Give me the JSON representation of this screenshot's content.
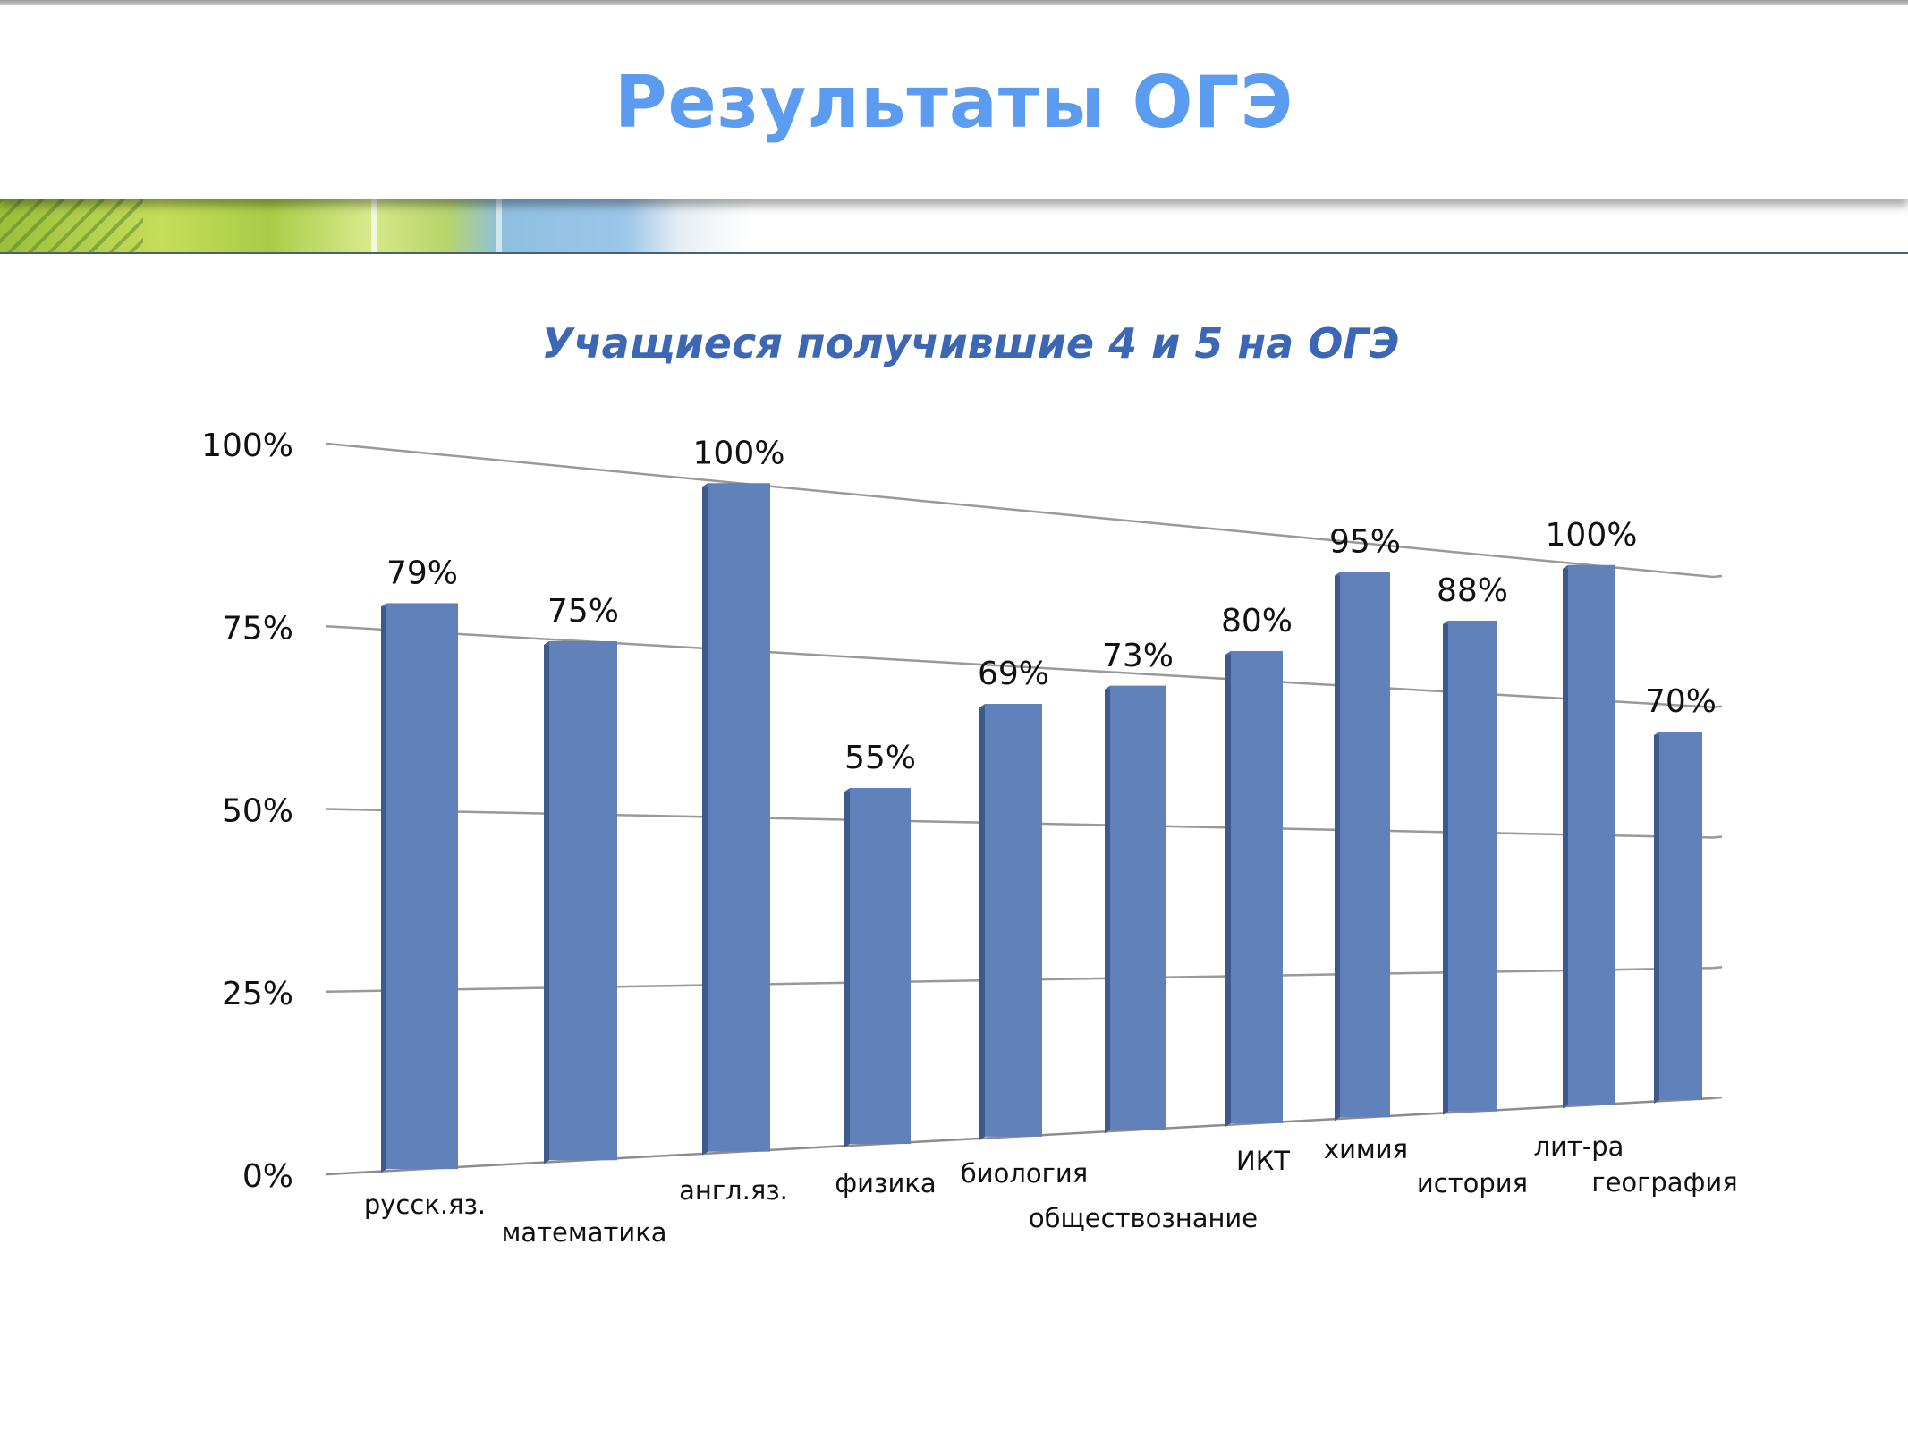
{
  "header": {
    "title": "Результаты ОГЭ"
  },
  "chart_data": {
    "type": "bar",
    "title": "Учащиеся получившие 4 и 5 на ОГЭ",
    "xlabel": "",
    "ylabel": "",
    "ylim": [
      0,
      100
    ],
    "y_ticks": [
      "0%",
      "25%",
      "50%",
      "75%",
      "100%"
    ],
    "grid": true,
    "legend": "none",
    "bar_color": "#6181bb",
    "categories": [
      "русск.яз.",
      "математика",
      "англ.яз.",
      "физика",
      "биология",
      "обществознание",
      "ИКТ",
      "химия",
      "история",
      "лит-ра",
      "география"
    ],
    "values": [
      79,
      75,
      100,
      55,
      69,
      73,
      80,
      95,
      88,
      100,
      70
    ],
    "data_labels": [
      "79%",
      "75%",
      "100%",
      "55%",
      "69%",
      "73%",
      "80%",
      "95%",
      "88%",
      "100%",
      "70%"
    ]
  }
}
